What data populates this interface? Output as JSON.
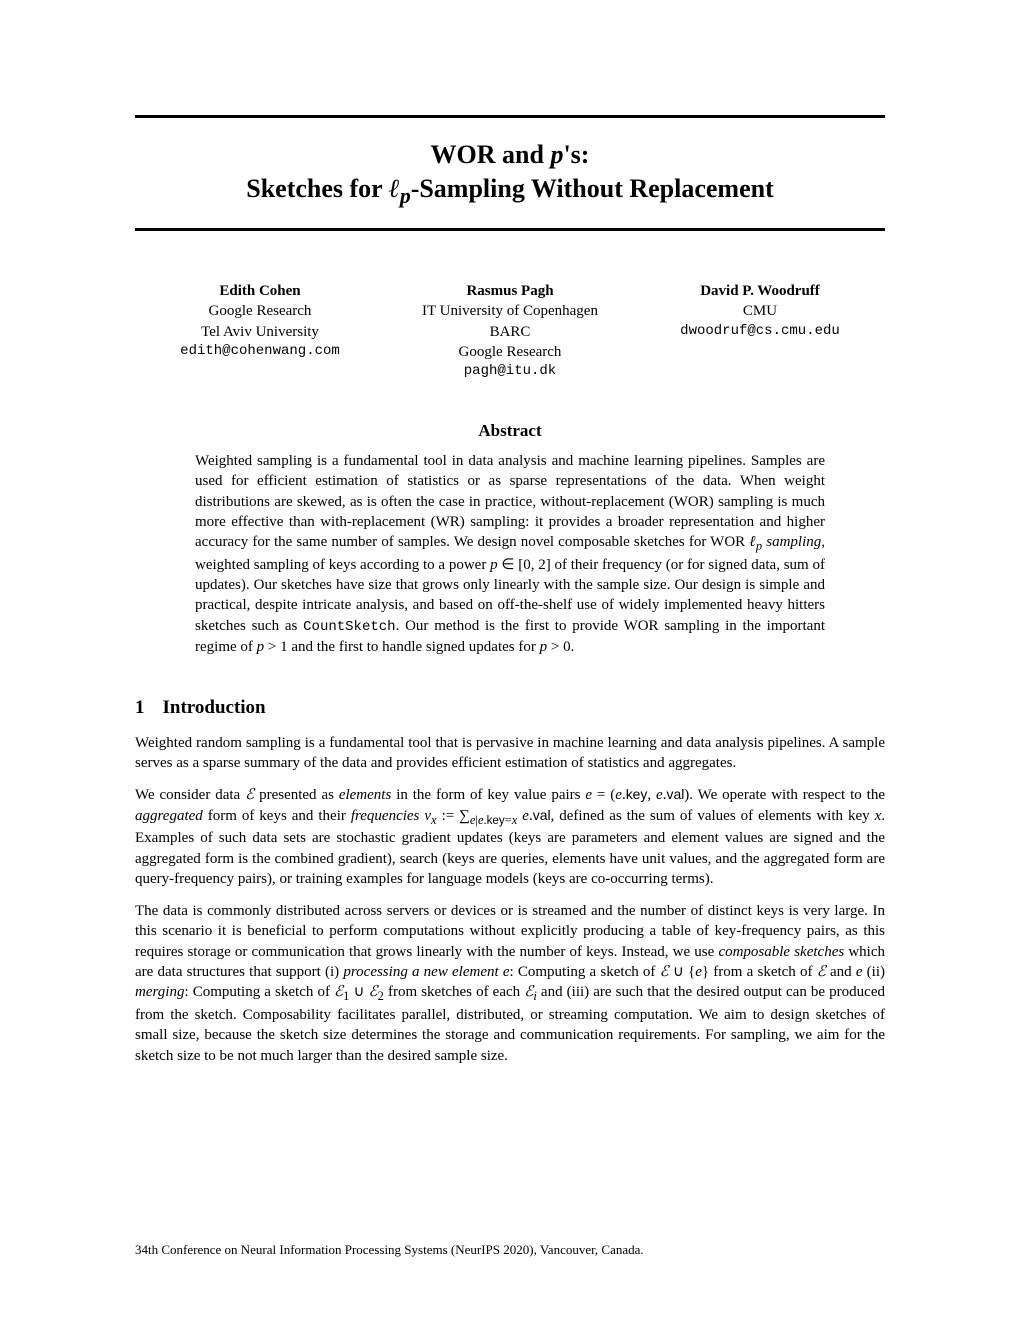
{
  "title": {
    "line1_html": "WOR and <span class='italic'>p</span>'s:",
    "line2_html": "Sketches for <span class='italic'>ℓ<sub>p</sub></span>-Sampling Without Replacement"
  },
  "authors": [
    {
      "name": "Edith Cohen",
      "affil": [
        "Google Research",
        "Tel Aviv University"
      ],
      "email": "edith@cohenwang.com"
    },
    {
      "name": "Rasmus Pagh",
      "affil": [
        "IT University of Copenhagen",
        "BARC",
        "Google Research"
      ],
      "email": "pagh@itu.dk"
    },
    {
      "name": "David P. Woodruff",
      "affil": [
        "CMU"
      ],
      "email": "dwoodruf@cs.cmu.edu"
    }
  ],
  "abstract": {
    "heading": "Abstract",
    "body_html": "Weighted sampling is a fundamental tool in data analysis and machine learning pipelines. Samples are used for efficient estimation of statistics or as sparse representations of the data. When weight distributions are skewed, as is often the case in practice, without-replacement (WOR) sampling is much more effective than with-replacement (WR) sampling: it provides a broader representation and higher accuracy for the same number of samples. We design novel composable sketches for WOR <span class='italic'>ℓ<sub>p</sub> sampling</span>, weighted sampling of keys according to a power <span class='italic'>p</span> ∈ [0, 2] of their frequency (or for signed data, sum of updates). Our sketches have size that grows only linearly with the sample size. Our design is simple and practical, despite intricate analysis, and based on off-the-shelf use of widely implemented heavy hitters sketches such as <span class='mono'>CountSketch</span>. Our method is the first to provide WOR sampling in the important regime of <span class='italic'>p</span> &gt; 1 and the first to handle signed updates for <span class='italic'>p</span> &gt; 0."
  },
  "section1": {
    "number": "1",
    "heading": "Introduction",
    "paragraphs_html": [
      "Weighted random sampling is a fundamental tool that is pervasive in machine learning and data analysis pipelines. A sample serves as a sparse summary of the data and provides efficient estimation of statistics and aggregates.",
      "We consider data <span class='italic'>ℰ</span> presented as <span class='italic'>elements</span> in the form of key value pairs <span class='italic'>e</span> = (<span class='italic'>e</span>.<span class='sf'>key</span>, <span class='italic'>e</span>.<span class='sf'>val</span>). We operate with respect to the <span class='italic'>aggregated</span> form of keys and their <span class='italic'>frequencies</span> <span class='italic'>ν<sub>x</sub></span> := ∑<sub><span class='italic'>e</span>|<span class='italic'>e</span>.<span class='sf'>key</span>=<span class='italic'>x</span></sub> <span class='italic'>e</span>.<span class='sf'>val</span>, defined as the sum of values of elements with key <span class='italic'>x</span>. Examples of such data sets are stochastic gradient updates (keys are parameters and element values are signed and the aggregated form is the combined gradient), search (keys are queries, elements have unit values, and the aggregated form are query-frequency pairs), or training examples for language models (keys are co-occurring terms).",
      "The data is commonly distributed across servers or devices or is streamed and the number of distinct keys is very large. In this scenario it is beneficial to perform computations without explicitly producing a table of key-frequency pairs, as this requires storage or communication that grows linearly with the number of keys. Instead, we use <span class='italic'>composable sketches</span> which are data structures that support (i) <span class='italic'>processing a new element e</span>: Computing a sketch of <span class='italic'>ℰ</span> ∪ {<span class='italic'>e</span>} from a sketch of <span class='italic'>ℰ</span> and <span class='italic'>e</span> (ii) <span class='italic'>merging</span>: Computing a sketch of <span class='italic'>ℰ</span><sub>1</sub> ∪ <span class='italic'>ℰ</span><sub>2</sub> from sketches of each <span class='italic'>ℰ<sub>i</sub></span> and (iii) are such that the desired output can be produced from the sketch. Composability facilitates parallel, distributed, or streaming computation. We aim to design sketches of small size, because the sketch size determines the storage and communication requirements. For sampling, we aim for the sketch size to be not much larger than the desired sample size."
    ]
  },
  "footer": "34th Conference on Neural Information Processing Systems (NeurIPS 2020), Vancouver, Canada."
}
